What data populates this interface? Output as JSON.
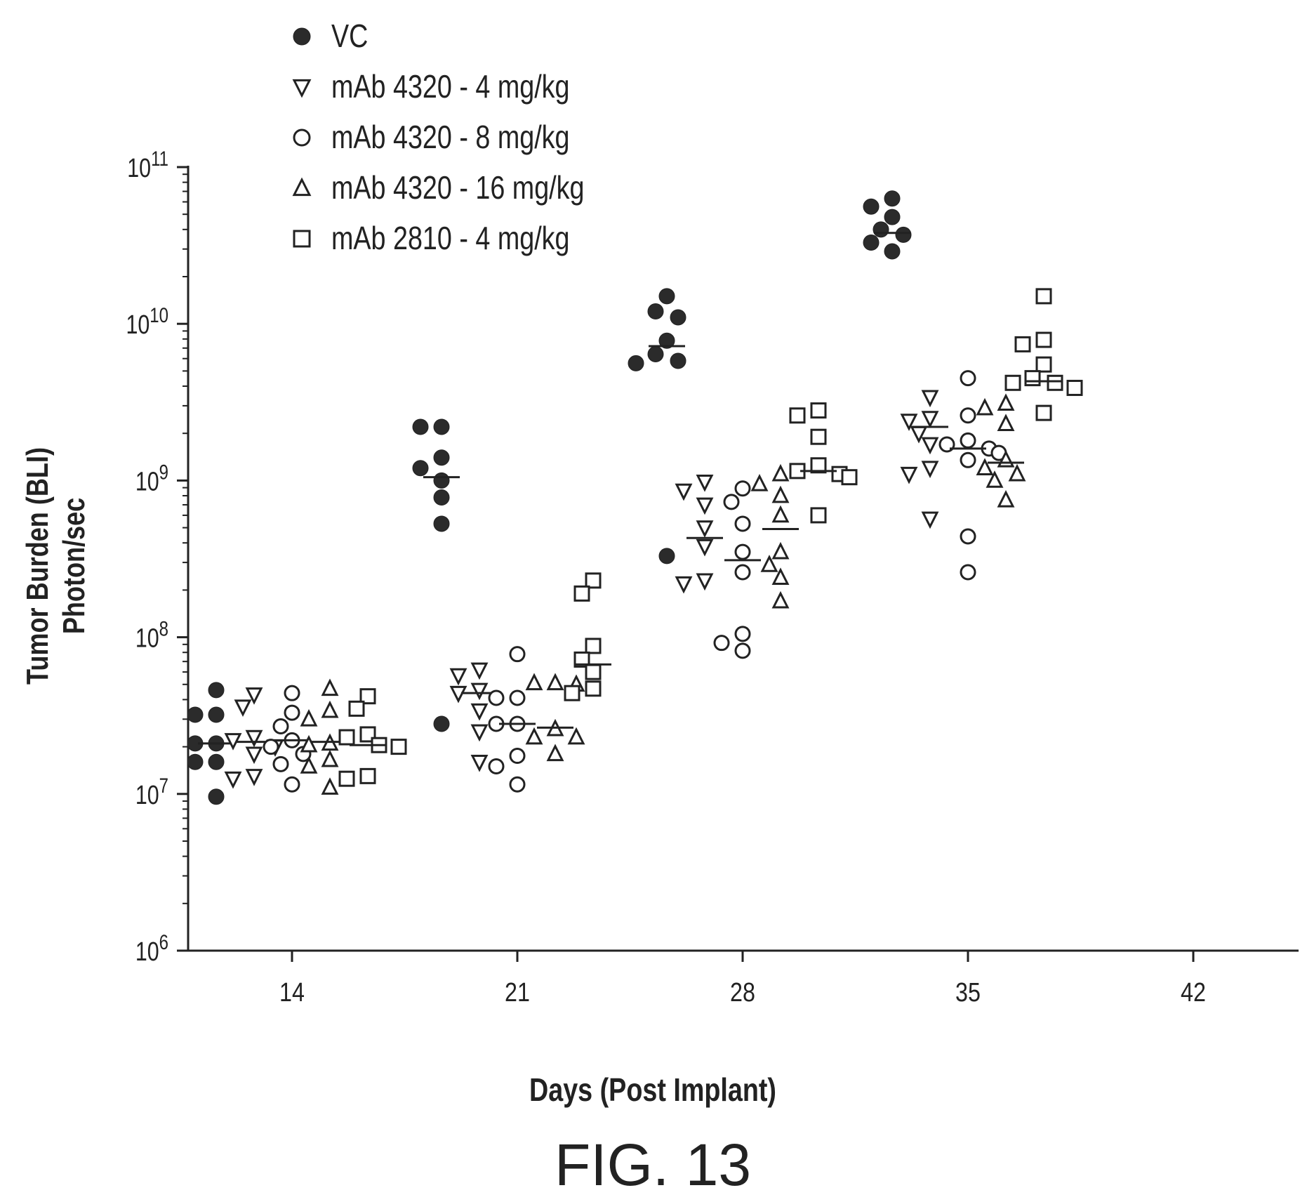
{
  "chart_data": {
    "type": "scatter",
    "title": "",
    "xlabel": "Days (Post Implant)",
    "ylabel_line1": "Tumor Burden (BLI)",
    "ylabel_line2": "Photon/sec",
    "figure_caption": "FIG. 13",
    "y_scale": "log",
    "ylim": [
      1000000,
      100000000000
    ],
    "x_ticks": [
      "14",
      "21",
      "28",
      "35",
      "42"
    ],
    "y_ticks": [
      {
        "base": "10",
        "exp": "6",
        "value": 1000000
      },
      {
        "base": "10",
        "exp": "7",
        "value": 10000000
      },
      {
        "base": "10",
        "exp": "8",
        "value": 100000000
      },
      {
        "base": "10",
        "exp": "9",
        "value": 1000000000
      },
      {
        "base": "10",
        "exp": "10",
        "value": 10000000000
      },
      {
        "base": "10",
        "exp": "11",
        "value": 100000000000
      }
    ],
    "legend_position": "top-left",
    "series": [
      {
        "name": "VC",
        "marker": "filled-circle",
        "groups": [
          {
            "day": 14,
            "median": 21000000,
            "values": [
              46000000,
              32000000,
              32000000,
              21000000,
              21000000,
              16000000,
              16000000,
              9600000
            ]
          },
          {
            "day": 21,
            "median": 1050000000,
            "values": [
              2200000000,
              2200000000,
              1400000000,
              1200000000,
              1000000000,
              780000000,
              530000000,
              28000000
            ]
          },
          {
            "day": 28,
            "median": 7200000000,
            "values": [
              15000000000,
              12000000000,
              11000000000,
              7800000000,
              6400000000,
              5800000000,
              5600000000,
              330000000
            ]
          },
          {
            "day": 35,
            "median": 38000000000,
            "values": [
              63000000000,
              56000000000,
              48000000000,
              40000000000,
              37000000000,
              33000000000,
              29000000000
            ]
          }
        ]
      },
      {
        "name": "mAb 4320 - 4 mg/kg",
        "marker": "down-triangle",
        "groups": [
          {
            "day": 14,
            "median": 21500000,
            "values": [
              43000000,
              36000000,
              23000000,
              22000000,
              20000000,
              18000000,
              13000000,
              12500000
            ]
          },
          {
            "day": 21,
            "median": 44000000,
            "values": [
              62000000,
              57000000,
              46000000,
              44000000,
              34000000,
              25000000,
              16000000
            ]
          },
          {
            "day": 28,
            "median": 430000000,
            "values": [
              980000000,
              860000000,
              700000000,
              500000000,
              380000000,
              230000000,
              220000000
            ]
          },
          {
            "day": 35,
            "median": 2200000000,
            "values": [
              3400000000,
              2500000000,
              2400000000,
              2000000000,
              1700000000,
              1200000000,
              1100000000,
              570000000
            ]
          }
        ]
      },
      {
        "name": "mAb 4320 - 8 mg/kg",
        "marker": "open-circle",
        "groups": [
          {
            "day": 14,
            "median": 22000000,
            "values": [
              44000000,
              33000000,
              27000000,
              22000000,
              20000000,
              18000000,
              15500000,
              11500000
            ]
          },
          {
            "day": 21,
            "median": 28000000,
            "values": [
              78000000,
              41000000,
              41000000,
              28000000,
              28000000,
              17500000,
              15000000,
              11500000
            ]
          },
          {
            "day": 28,
            "median": 310000000,
            "values": [
              890000000,
              730000000,
              530000000,
              350000000,
              260000000,
              105000000,
              92000000,
              82000000
            ]
          },
          {
            "day": 35,
            "median": 1600000000,
            "values": [
              4500000000,
              2600000000,
              1800000000,
              1700000000,
              1600000000,
              1500000000,
              1350000000,
              440000000,
              260000000
            ]
          }
        ]
      },
      {
        "name": "mAb 4320 - 16 mg/kg",
        "marker": "up-triangle",
        "groups": [
          {
            "day": 14,
            "median": 21500000,
            "values": [
              47000000,
              34000000,
              30000000,
              21000000,
              20500000,
              16500000,
              15000000,
              11000000
            ]
          },
          {
            "day": 21,
            "median": 26500000,
            "values": [
              51000000,
              51000000,
              50000000,
              26000000,
              23000000,
              23000000,
              18000000
            ]
          },
          {
            "day": 28,
            "median": 490000000,
            "values": [
              1100000000,
              950000000,
              800000000,
              600000000,
              350000000,
              290000000,
              240000000,
              170000000
            ]
          },
          {
            "day": 35,
            "median": 1300000000,
            "values": [
              3100000000,
              2900000000,
              2300000000,
              1350000000,
              1200000000,
              1100000000,
              1000000000,
              750000000
            ]
          }
        ]
      },
      {
        "name": "mAb 2810 - 4 mg/kg",
        "marker": "open-square",
        "groups": [
          {
            "day": 14,
            "median": 20500000,
            "values": [
              42000000,
              35000000,
              24000000,
              23000000,
              20500000,
              20000000,
              13000000,
              12500000
            ]
          },
          {
            "day": 21,
            "median": 67000000,
            "values": [
              230000000,
              190000000,
              88000000,
              72000000,
              60000000,
              47000000,
              44000000
            ]
          },
          {
            "day": 28,
            "median": 1150000000,
            "values": [
              2800000000,
              2600000000,
              1900000000,
              1250000000,
              1150000000,
              1100000000,
              1050000000,
              600000000
            ]
          },
          {
            "day": 35,
            "median": 4300000000,
            "values": [
              15000000000,
              7900000000,
              7400000000,
              5500000000,
              4500000000,
              4200000000,
              4200000000,
              3900000000,
              2700000000
            ]
          }
        ]
      }
    ]
  }
}
